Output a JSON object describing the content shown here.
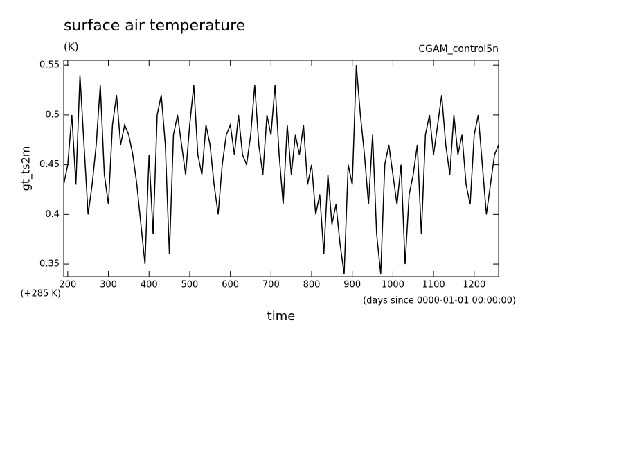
{
  "chart_data": {
    "type": "line",
    "title": "surface air temperature",
    "units": "(K)",
    "experiment": "CGAM_control5n",
    "y_label": "gt_ts2m",
    "y_offset": "(+285 K)",
    "x_label": "time",
    "x_units": "(days since 0000-01-01 00:00:00)",
    "x": [
      190,
      200,
      210,
      220,
      230,
      240,
      250,
      260,
      270,
      280,
      290,
      300,
      310,
      320,
      330,
      340,
      350,
      360,
      370,
      380,
      390,
      400,
      410,
      420,
      430,
      440,
      450,
      460,
      470,
      480,
      490,
      500,
      510,
      520,
      530,
      540,
      550,
      560,
      570,
      580,
      590,
      600,
      610,
      620,
      630,
      640,
      650,
      660,
      670,
      680,
      690,
      700,
      710,
      720,
      730,
      740,
      750,
      760,
      770,
      780,
      790,
      800,
      810,
      820,
      830,
      840,
      850,
      860,
      870,
      880,
      890,
      900,
      910,
      920,
      930,
      940,
      950,
      960,
      970,
      980,
      990,
      1000,
      1010,
      1020,
      1030,
      1040,
      1050,
      1060,
      1070,
      1080,
      1090,
      1100,
      1110,
      1120,
      1130,
      1140,
      1150,
      1160,
      1170,
      1180,
      1190,
      1200,
      1210,
      1220,
      1230,
      1240,
      1250,
      1260
    ],
    "series": [
      {
        "color": "#000000",
        "values": [
          0.43,
          0.45,
          0.5,
          0.43,
          0.54,
          0.47,
          0.4,
          0.43,
          0.47,
          0.53,
          0.44,
          0.41,
          0.49,
          0.52,
          0.47,
          0.49,
          0.48,
          0.46,
          0.43,
          0.39,
          0.35,
          0.46,
          0.38,
          0.5,
          0.52,
          0.47,
          0.36,
          0.48,
          0.5,
          0.47,
          0.44,
          0.49,
          0.53,
          0.46,
          0.44,
          0.49,
          0.47,
          0.43,
          0.4,
          0.45,
          0.48,
          0.49,
          0.46,
          0.5,
          0.46,
          0.45,
          0.48,
          0.53,
          0.47,
          0.44,
          0.5,
          0.48,
          0.53,
          0.46,
          0.41,
          0.49,
          0.44,
          0.48,
          0.46,
          0.49,
          0.43,
          0.45,
          0.4,
          0.42,
          0.36,
          0.44,
          0.39,
          0.41,
          0.37,
          0.34,
          0.45,
          0.43,
          0.55,
          0.5,
          0.46,
          0.41,
          0.48,
          0.38,
          0.34,
          0.45,
          0.47,
          0.44,
          0.41,
          0.45,
          0.35,
          0.42,
          0.44,
          0.47,
          0.38,
          0.48,
          0.5,
          0.46,
          0.49,
          0.52,
          0.47,
          0.44,
          0.5,
          0.46,
          0.48,
          0.43,
          0.41,
          0.48,
          0.5,
          0.45,
          0.4,
          0.43,
          0.46,
          0.47
        ]
      }
    ],
    "xlim": [
      190,
      1260
    ],
    "ylim": [
      0.3375,
      0.555
    ],
    "xticks": [
      200,
      300,
      400,
      500,
      600,
      700,
      800,
      900,
      1000,
      1100,
      1200
    ],
    "yticks": [
      0.35,
      0.4,
      0.45,
      0.5,
      0.55
    ]
  }
}
